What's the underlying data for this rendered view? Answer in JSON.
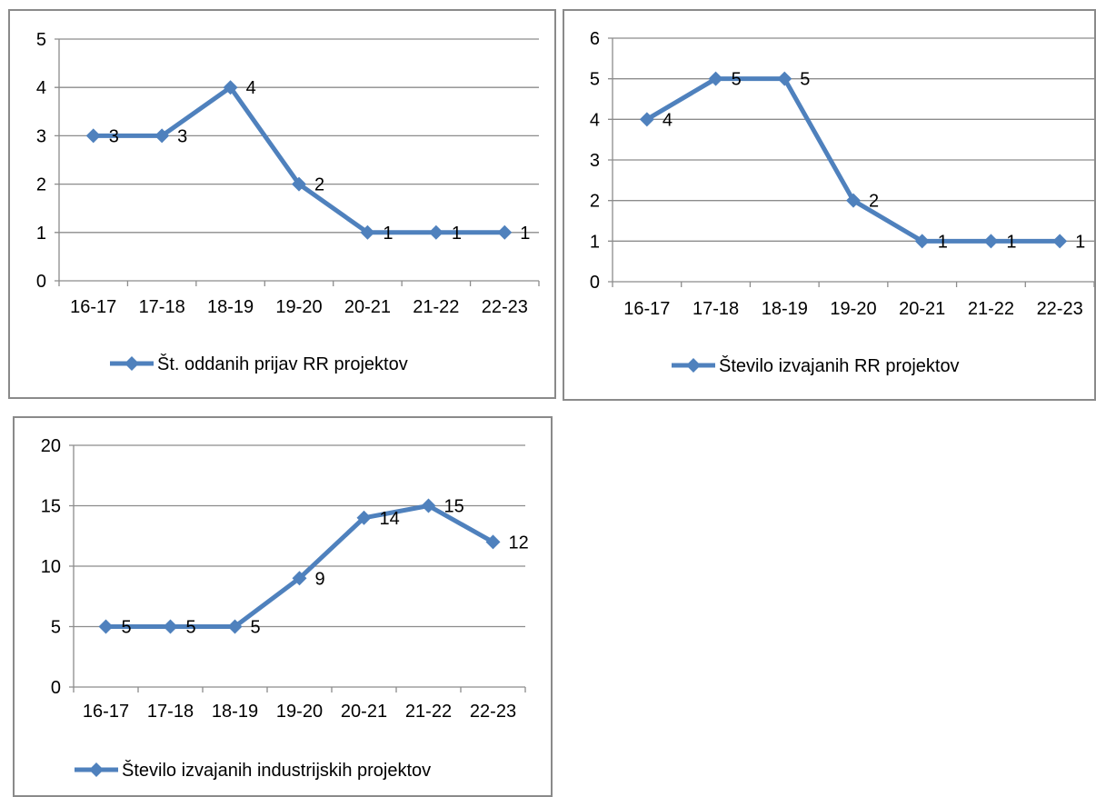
{
  "chart_data": [
    {
      "type": "line",
      "categories": [
        "16-17",
        "17-18",
        "18-19",
        "19-20",
        "20-21",
        "21-22",
        "22-23"
      ],
      "series": [
        {
          "name": "Št. oddanih prijav RR projektov",
          "values": [
            3,
            3,
            4,
            2,
            1,
            1,
            1
          ]
        }
      ],
      "ylim": [
        0,
        5
      ],
      "yticks": [
        0,
        1,
        2,
        3,
        4,
        5
      ],
      "grid": true,
      "legend": "bottom",
      "data_labels": true,
      "color": "#4f81bd"
    },
    {
      "type": "line",
      "categories": [
        "16-17",
        "17-18",
        "18-19",
        "19-20",
        "20-21",
        "21-22",
        "22-23"
      ],
      "series": [
        {
          "name": "Število izvajanih RR projektov",
          "values": [
            4,
            5,
            5,
            2,
            1,
            1,
            1
          ]
        }
      ],
      "ylim": [
        0,
        6
      ],
      "yticks": [
        0,
        1,
        2,
        3,
        4,
        5,
        6
      ],
      "grid": true,
      "legend": "bottom",
      "data_labels": true,
      "color": "#4f81bd"
    },
    {
      "type": "line",
      "categories": [
        "16-17",
        "17-18",
        "18-19",
        "19-20",
        "20-21",
        "21-22",
        "22-23"
      ],
      "series": [
        {
          "name": "Število izvajanih industrijskih projektov",
          "values": [
            5,
            5,
            5,
            9,
            14,
            15,
            12
          ]
        }
      ],
      "ylim": [
        0,
        20
      ],
      "yticks": [
        0,
        5,
        10,
        15,
        20
      ],
      "grid": true,
      "legend": "bottom",
      "data_labels": true,
      "color": "#4f81bd"
    }
  ]
}
